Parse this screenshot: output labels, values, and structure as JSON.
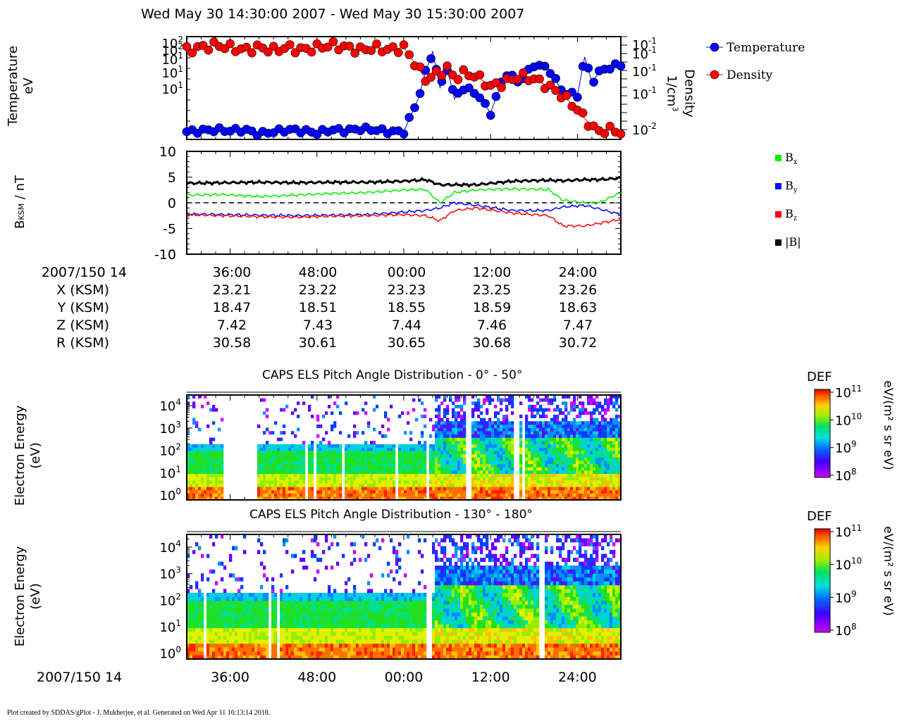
{
  "page_title": "Wed May 30 14:30:00 2007 - Wed May 30 15:30:00 2007",
  "footer": "Plot created by SDDAS/gPlot - J. Mukherjee, et al.  Generated on Wed Apr 11 16:13:14 2018.",
  "panel1": {
    "ylabel_left_1": "Temperature",
    "ylabel_left_2": "eV",
    "ylabel_right_1": "Density",
    "ylabel_right_2": "1/cm",
    "ylabel_right_sup": "3",
    "left_ticks": [
      "10",
      "10",
      "10",
      "10",
      "10",
      "10"
    ],
    "left_tick_exps": [
      "2",
      "2",
      "1",
      "1",
      "1"
    ],
    "right_tick_bases": [
      "10",
      "10",
      "10",
      "10",
      "10"
    ],
    "right_tick_exps": [
      "-1",
      "-1",
      "-1",
      "-1",
      "-2"
    ],
    "legend": [
      {
        "label": "Temperature",
        "color": "#0000ff"
      },
      {
        "label": "Density",
        "color": "#ff0000"
      }
    ]
  },
  "panel2": {
    "ylabel_main": "B",
    "ylabel_sub": "KSM",
    "ylabel_tail": " / nT",
    "y_ticks": [
      "10",
      "5",
      "0",
      "-5",
      "-10"
    ],
    "legend": [
      {
        "label": "B",
        "sub": "x",
        "color": "#00ee00"
      },
      {
        "label": "B",
        "sub": "y",
        "color": "#0000ff"
      },
      {
        "label": "B",
        "sub": "z",
        "color": "#ff0000"
      },
      {
        "label": "|B|",
        "sub": "",
        "color": "#000000"
      }
    ]
  },
  "ephemeris": {
    "rows": [
      {
        "label": "2007/150 14",
        "values": [
          "36:00",
          "48:00",
          "00:00",
          "12:00",
          "24:00"
        ]
      },
      {
        "label": "X (KSM)",
        "values": [
          "23.21",
          "23.22",
          "23.23",
          "23.25",
          "23.26"
        ]
      },
      {
        "label": "Y (KSM)",
        "values": [
          "18.47",
          "18.51",
          "18.55",
          "18.59",
          "18.63"
        ]
      },
      {
        "label": "Z (KSM)",
        "values": [
          "7.42",
          "7.43",
          "7.44",
          "7.46",
          "7.47"
        ]
      },
      {
        "label": "R (KSM)",
        "values": [
          "30.58",
          "30.61",
          "30.65",
          "30.68",
          "30.72"
        ]
      }
    ]
  },
  "spectro1": {
    "title": "CAPS ELS Pitch Angle Distribution - 0° - 50°",
    "ylabel_1": "Electron Energy",
    "ylabel_2": "(eV)",
    "colorbar_title": "DEF",
    "colorbar_unit": "eV/(m² s sr eV)"
  },
  "spectro2": {
    "title": "CAPS ELS Pitch Angle Distribution - 130° - 180°",
    "ylabel_1": "Electron Energy",
    "ylabel_2": "(eV)",
    "colorbar_title": "DEF",
    "colorbar_unit": "eV/(m² s sr eV)"
  },
  "bottom_axis": {
    "label": "2007/150 14",
    "ticks": [
      "36:00",
      "48:00",
      "00:00",
      "12:00",
      "24:00"
    ]
  },
  "chart_data": [
    {
      "type": "line",
      "title": "Wed May 30 14:30:00 2007 - Wed May 30 15:30:00 2007",
      "x_unit": "minutes after 14:30 UT",
      "xlim": [
        0,
        60
      ],
      "series": [
        {
          "name": "Temperature",
          "axis": "left",
          "color": "#0000ff",
          "x": [
            0,
            2,
            4,
            6,
            8,
            10,
            12,
            14,
            16,
            18,
            20,
            22,
            24,
            26,
            28,
            30,
            32,
            33,
            34,
            35,
            36,
            37,
            38,
            40,
            42,
            44,
            46,
            48,
            50,
            52,
            54,
            55,
            56,
            57,
            58,
            60
          ],
          "values": [
            0.9,
            0.95,
            1.0,
            0.95,
            1.0,
            0.8,
            0.9,
            1.0,
            0.95,
            0.85,
            1.0,
            0.95,
            1.05,
            1.0,
            0.9,
            0.9,
            5,
            20,
            60,
            9,
            25,
            5,
            9,
            7,
            2.4,
            20,
            12,
            30,
            25,
            7,
            6,
            45,
            12,
            20,
            25,
            30
          ]
        },
        {
          "name": "Density",
          "axis": "right",
          "color": "#ff0000",
          "x": [
            0,
            2,
            4,
            6,
            8,
            10,
            12,
            14,
            16,
            18,
            20,
            22,
            24,
            26,
            28,
            30,
            32,
            33,
            34,
            35,
            36,
            37,
            38,
            40,
            42,
            44,
            46,
            48,
            50,
            52,
            54,
            55,
            56,
            57,
            58,
            60
          ],
          "values": [
            0.12,
            0.13,
            0.14,
            0.13,
            0.12,
            0.13,
            0.12,
            0.13,
            0.12,
            0.13,
            0.14,
            0.13,
            0.12,
            0.13,
            0.12,
            0.13,
            0.07,
            0.05,
            0.055,
            0.06,
            0.07,
            0.05,
            0.06,
            0.055,
            0.04,
            0.045,
            0.055,
            0.05,
            0.04,
            0.03,
            0.02,
            0.015,
            0.012,
            0.01,
            0.011,
            0.01
          ]
        }
      ]
    },
    {
      "type": "line",
      "ylabel": "B KSM / nT",
      "ylim": [
        -10,
        10
      ],
      "xlim": [
        0,
        60
      ],
      "x_unit": "minutes after 14:30 UT",
      "series": [
        {
          "name": "Bx",
          "color": "#00ee00",
          "x": [
            0,
            5,
            10,
            15,
            20,
            25,
            30,
            33,
            35,
            37,
            40,
            45,
            50,
            52,
            55,
            57,
            60
          ],
          "values": [
            1.5,
            1.6,
            1.2,
            1.5,
            1.8,
            2.0,
            2.5,
            2.6,
            0.0,
            2.0,
            2.5,
            2.7,
            2.6,
            0.5,
            0.0,
            0.0,
            2.0
          ]
        },
        {
          "name": "By",
          "color": "#0000ff",
          "x": [
            0,
            5,
            10,
            15,
            20,
            25,
            30,
            33,
            35,
            37,
            40,
            45,
            50,
            52,
            55,
            57,
            60
          ],
          "values": [
            -2.2,
            -2.3,
            -2.4,
            -2.5,
            -2.4,
            -2.3,
            -1.8,
            -1.5,
            -1.0,
            0.0,
            -0.5,
            -1.5,
            -1.5,
            -0.8,
            -0.5,
            -1.2,
            -2.3
          ]
        },
        {
          "name": "Bz",
          "color": "#ff0000",
          "x": [
            0,
            5,
            10,
            15,
            20,
            25,
            30,
            33,
            35,
            37,
            40,
            45,
            50,
            52,
            55,
            57,
            60
          ],
          "values": [
            -2.3,
            -2.5,
            -2.7,
            -2.8,
            -2.6,
            -2.5,
            -2.3,
            -2.5,
            -3.5,
            -1.5,
            -1.0,
            -2.0,
            -2.5,
            -4.5,
            -4.5,
            -4.0,
            -3.2
          ]
        },
        {
          "name": "|B|",
          "color": "#000000",
          "x": [
            0,
            5,
            10,
            15,
            20,
            25,
            30,
            33,
            35,
            37,
            40,
            45,
            50,
            52,
            55,
            57,
            60
          ],
          "values": [
            3.8,
            3.9,
            4.0,
            3.9,
            4.0,
            4.0,
            4.2,
            4.5,
            3.5,
            3.5,
            3.5,
            4.2,
            4.4,
            4.3,
            4.5,
            4.5,
            4.8
          ]
        }
      ]
    },
    {
      "type": "heatmap",
      "title": "CAPS ELS Pitch Angle Distribution - 0° - 50°",
      "ylabel": "Electron Energy (eV)",
      "ylim": [
        0.6,
        30000
      ],
      "yscale": "log",
      "colorbar": {
        "label": "DEF",
        "unit": "eV/(m² s sr eV)",
        "range": [
          100000000.0,
          100000000000.0
        ],
        "scale": "log"
      },
      "colorbar_tick_exps": [
        "11",
        "10",
        "9",
        "8"
      ]
    },
    {
      "type": "heatmap",
      "title": "CAPS ELS Pitch Angle Distribution - 130° - 180°",
      "ylabel": "Electron Energy (eV)",
      "ylim": [
        0.6,
        30000
      ],
      "yscale": "log",
      "colorbar": {
        "label": "DEF",
        "unit": "eV/(m² s sr eV)",
        "range": [
          100000000.0,
          100000000000.0
        ],
        "scale": "log"
      },
      "colorbar_tick_exps": [
        "11",
        "10",
        "9",
        "8"
      ]
    }
  ]
}
